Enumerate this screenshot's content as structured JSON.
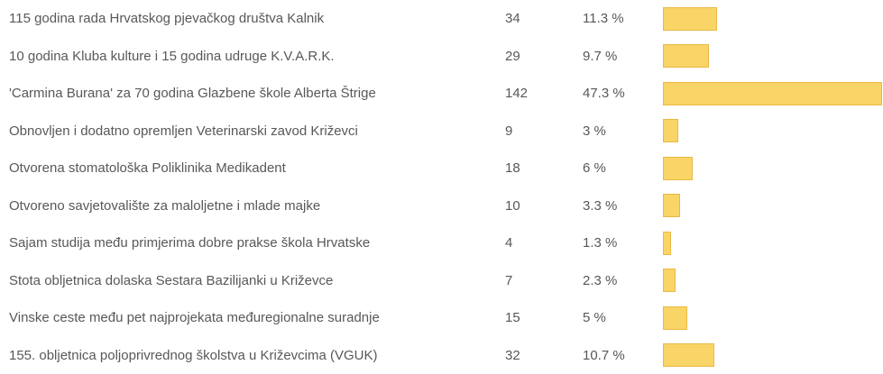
{
  "colors": {
    "bar_fill": "#f9d567",
    "bar_border": "#ecb844",
    "text": "#58585a",
    "background": "#ffffff"
  },
  "poll": {
    "rows": [
      {
        "label": "115 godina rada Hrvatskog pjevačkog društva Kalnik",
        "votes": "34",
        "percent_label": "11.3 %",
        "percent": 11.3
      },
      {
        "label": "10 godina Kluba kulture i 15 godina udruge K.V.A.R.K.",
        "votes": "29",
        "percent_label": "9.7 %",
        "percent": 9.7
      },
      {
        "label": "'Carmina Burana' za 70 godina Glazbene škole Alberta Štrige",
        "votes": "142",
        "percent_label": "47.3 %",
        "percent": 47.3
      },
      {
        "label": "Obnovljen i dodatno opremljen Veterinarski zavod Križevci",
        "votes": "9",
        "percent_label": "3 %",
        "percent": 3
      },
      {
        "label": "Otvorena stomatološka Poliklinika Medikadent",
        "votes": "18",
        "percent_label": "6 %",
        "percent": 6
      },
      {
        "label": "Otvoreno savjetovalište za maloljetne i mlade majke",
        "votes": "10",
        "percent_label": "3.3 %",
        "percent": 3.3
      },
      {
        "label": "Sajam studija među primjerima dobre prakse škola Hrvatske",
        "votes": "4",
        "percent_label": "1.3 %",
        "percent": 1.3
      },
      {
        "label": "Stota obljetnica dolaska Sestara Bazilijanki u Križevce",
        "votes": "7",
        "percent_label": "2.3 %",
        "percent": 2.3
      },
      {
        "label": "Vinske ceste među pet najprojekata međuregionalne suradnje",
        "votes": "15",
        "percent_label": "5 %",
        "percent": 5
      },
      {
        "label": "155. obljetnica poljoprivrednog školstva u Križevcima (VGUK)",
        "votes": "32",
        "percent_label": "10.7 %",
        "percent": 10.7
      }
    ]
  },
  "chart_data": {
    "type": "bar",
    "orientation": "horizontal",
    "title": "",
    "xlabel": "",
    "ylabel": "",
    "grid": false,
    "legend": false,
    "categories": [
      "115 godina rada Hrvatskog pjevačkog društva Kalnik",
      "10 godina Kluba kulture i 15 godina udruge K.V.A.R.K.",
      "'Carmina Burana' za 70 godina Glazbene škole Alberta Štrige",
      "Obnovljen i dodatno opremljen Veterinarski zavod Križevci",
      "Otvorena stomatološka Poliklinika Medikadent",
      "Otvoreno savjetovalište za maloljetne i mlade majke",
      "Sajam studija među primjerima dobre prakse škola Hrvatske",
      "Stota obljetnica dolaska Sestara Bazilijanki u Križevce",
      "Vinske ceste među pet najprojekata međuregionalne suradnje",
      "155. obljetnica poljoprivrednog školstva u Križevcima (VGUK)"
    ],
    "series": [
      {
        "name": "votes",
        "values": [
          34,
          29,
          142,
          9,
          18,
          10,
          4,
          7,
          15,
          32
        ]
      },
      {
        "name": "percent",
        "values": [
          11.3,
          9.7,
          47.3,
          3,
          6,
          3.3,
          1.3,
          2.3,
          5,
          10.7
        ]
      }
    ],
    "value_labels": [
      "11.3 %",
      "9.7 %",
      "47.3 %",
      "3 %",
      "6 %",
      "3.3 %",
      "1.3 %",
      "2.3 %",
      "5 %",
      "10.7 %"
    ],
    "xlim": [
      0,
      48
    ]
  }
}
